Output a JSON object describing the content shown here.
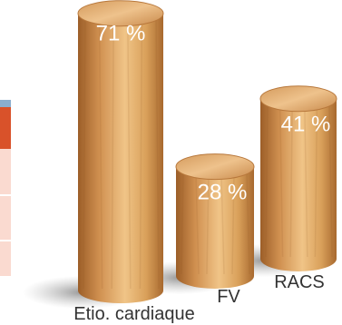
{
  "chart_data": {
    "type": "bar",
    "categories": [
      "Etio. cardiaque",
      "FV",
      "RACS"
    ],
    "values": [
      71,
      28,
      41
    ],
    "value_labels": [
      "71 %",
      "28 %",
      "41 %"
    ],
    "unit": "%",
    "ylim": [
      0,
      100
    ],
    "style": "3d-wood-cylinders",
    "grid": false
  },
  "colors": {
    "wood_dark": "#a8692f",
    "wood_mid": "#d9a05a",
    "wood_light": "#f0c487",
    "wood_top": "#e6b578",
    "shadow": "#9a9a9a",
    "side_panel_blue": "#8aaecf",
    "side_panel_red": "#d9522a",
    "side_panel_pink": "#fadad0"
  }
}
